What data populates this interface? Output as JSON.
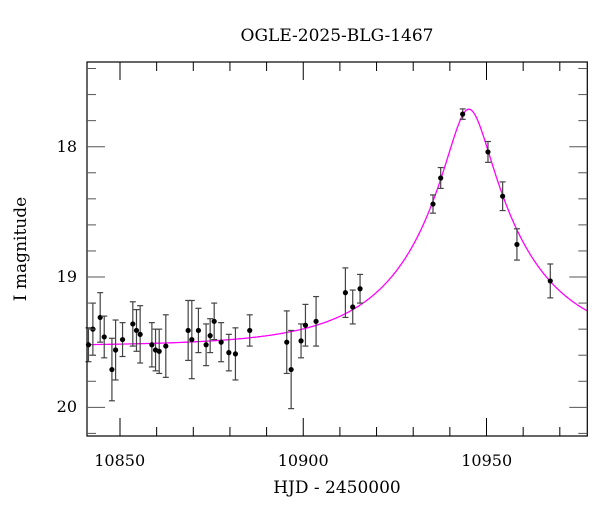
{
  "chart_data": {
    "type": "scatter",
    "title": "OGLE-2025-BLG-1467",
    "xlabel": "HJD - 2450000",
    "ylabel": "I magnitude",
    "xlim": [
      10841,
      10977.5
    ],
    "ylim": [
      20.22,
      17.35
    ],
    "y_inverted": true,
    "x_ticks": [
      10850,
      10900,
      10950
    ],
    "x_tick_labels": [
      "10850",
      "10900",
      "10950"
    ],
    "y_ticks": [
      18,
      19,
      20
    ],
    "y_tick_labels": [
      "18",
      "19",
      "20"
    ],
    "grid": false,
    "colors": {
      "points": "#000000",
      "model": "#ff00ff"
    },
    "points": [
      {
        "x": 10841.4,
        "y": 19.52,
        "err": 0.13
      },
      {
        "x": 10842.6,
        "y": 19.4,
        "err": 0.2
      },
      {
        "x": 10844.6,
        "y": 19.31,
        "err": 0.19
      },
      {
        "x": 10845.7,
        "y": 19.46,
        "err": 0.16
      },
      {
        "x": 10847.8,
        "y": 19.71,
        "err": 0.24
      },
      {
        "x": 10848.8,
        "y": 19.56,
        "err": 0.23
      },
      {
        "x": 10850.7,
        "y": 19.48,
        "err": 0.13
      },
      {
        "x": 10853.5,
        "y": 19.36,
        "err": 0.17
      },
      {
        "x": 10854.5,
        "y": 19.41,
        "err": 0.16
      },
      {
        "x": 10855.5,
        "y": 19.44,
        "err": 0.22
      },
      {
        "x": 10858.7,
        "y": 19.52,
        "err": 0.17
      },
      {
        "x": 10859.7,
        "y": 19.56,
        "err": 0.16
      },
      {
        "x": 10860.7,
        "y": 19.57,
        "err": 0.17
      },
      {
        "x": 10862.5,
        "y": 19.53,
        "err": 0.24
      },
      {
        "x": 10868.6,
        "y": 19.41,
        "err": 0.23
      },
      {
        "x": 10869.6,
        "y": 19.48,
        "err": 0.3
      },
      {
        "x": 10871.4,
        "y": 19.41,
        "err": 0.17
      },
      {
        "x": 10873.5,
        "y": 19.52,
        "err": 0.16
      },
      {
        "x": 10874.6,
        "y": 19.45,
        "err": 0.13
      },
      {
        "x": 10875.7,
        "y": 19.34,
        "err": 0.14
      },
      {
        "x": 10877.6,
        "y": 19.5,
        "err": 0.15
      },
      {
        "x": 10879.7,
        "y": 19.58,
        "err": 0.14
      },
      {
        "x": 10881.5,
        "y": 19.59,
        "err": 0.2
      },
      {
        "x": 10885.4,
        "y": 19.41,
        "err": 0.12
      },
      {
        "x": 10895.5,
        "y": 19.5,
        "err": 0.24
      },
      {
        "x": 10896.7,
        "y": 19.71,
        "err": 0.3
      },
      {
        "x": 10899.4,
        "y": 19.49,
        "err": 0.13
      },
      {
        "x": 10900.6,
        "y": 19.37,
        "err": 0.16
      },
      {
        "x": 10903.5,
        "y": 19.34,
        "err": 0.19
      },
      {
        "x": 10911.5,
        "y": 19.12,
        "err": 0.19
      },
      {
        "x": 10913.5,
        "y": 19.23,
        "err": 0.13
      },
      {
        "x": 10915.5,
        "y": 19.09,
        "err": 0.11
      },
      {
        "x": 10935.4,
        "y": 18.44,
        "err": 0.07
      },
      {
        "x": 10937.5,
        "y": 18.24,
        "err": 0.08
      },
      {
        "x": 10943.5,
        "y": 17.75,
        "err": 0.04
      },
      {
        "x": 10950.4,
        "y": 18.04,
        "err": 0.08
      },
      {
        "x": 10954.4,
        "y": 18.38,
        "err": 0.11
      },
      {
        "x": 10958.3,
        "y": 18.75,
        "err": 0.12
      },
      {
        "x": 10967.4,
        "y": 19.03,
        "err": 0.13
      }
    ]
  }
}
